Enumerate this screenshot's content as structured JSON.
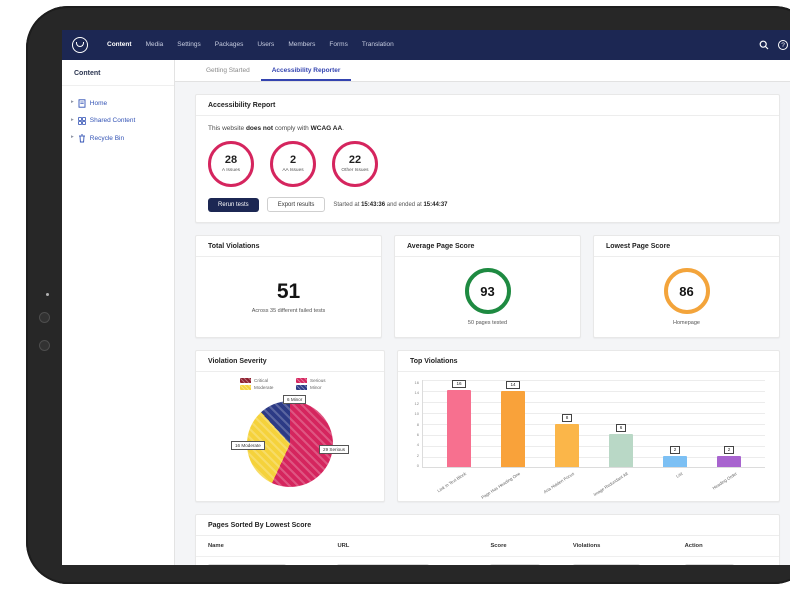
{
  "topnav": {
    "brand": "Umbraco",
    "items": [
      {
        "label": "Content",
        "active": true
      },
      {
        "label": "Media"
      },
      {
        "label": "Settings"
      },
      {
        "label": "Packages"
      },
      {
        "label": "Users"
      },
      {
        "label": "Members"
      },
      {
        "label": "Forms"
      },
      {
        "label": "Translation"
      }
    ],
    "help_glyph": "?"
  },
  "sidebar": {
    "title": "Content",
    "items": [
      {
        "label": "Home",
        "icon": "document-icon"
      },
      {
        "label": "Shared Content",
        "icon": "shared-grid-icon"
      },
      {
        "label": "Recycle Bin",
        "icon": "trash-icon"
      }
    ],
    "caret_glyph": "▸"
  },
  "tabs": {
    "getting_started": "Getting Started",
    "accessibility_reporter": "Accessibility Reporter"
  },
  "report": {
    "title": "Accessibility Report",
    "statement": {
      "prefix": "This website ",
      "bold1": "does not",
      "middle": " comply with ",
      "bold2": "WCAG AA",
      "suffix": "."
    },
    "issues": [
      {
        "count": "28",
        "label": "A Issues"
      },
      {
        "count": "2",
        "label": "AA Issues"
      },
      {
        "count": "22",
        "label": "Other Issues"
      }
    ],
    "buttons": {
      "rerun": "Rerun tests",
      "export": "Export results"
    },
    "run_info": {
      "prefix": "Started at ",
      "start": "15:43:36",
      "middle": " and ended at ",
      "end": "15:44:37"
    }
  },
  "stats": [
    {
      "title": "Total Violations",
      "value": "51",
      "subtitle": "Across 35 different failed tests"
    },
    {
      "title": "Average Page Score",
      "value": "93",
      "subtitle": "50 pages tested",
      "ring_color": "#1e8a41"
    },
    {
      "title": "Lowest Page Score",
      "value": "86",
      "subtitle": "Homepage",
      "ring_color": "#f3a43b"
    }
  ],
  "severity": {
    "title": "Violation Severity",
    "legend": [
      {
        "label": "Critical",
        "color": "#8e1f2f"
      },
      {
        "label": "Serious",
        "color": "#d5255e"
      },
      {
        "label": "Moderate",
        "color": "#f5d23b"
      },
      {
        "label": "Minor",
        "color": "#2c3a85"
      }
    ],
    "callouts": [
      {
        "text": "6 Minor"
      },
      {
        "text": "16 Moderate"
      },
      {
        "text": "29 Serious"
      }
    ]
  },
  "top_violations": {
    "title": "Top Violations"
  },
  "pages_table": {
    "title": "Pages Sorted By Lowest Score",
    "headers": [
      "Name",
      "URL",
      "Score",
      "Violations",
      "Action"
    ]
  },
  "colors": {
    "navbar_navy": "#1c2753",
    "active_tab_blue": "#3444b0",
    "issue_ring_pink": "#d5255e",
    "score_good_green": "#1e8a41",
    "score_warn_orange": "#f3a43b"
  },
  "chart_data": [
    {
      "type": "pie",
      "title": "Violation Severity",
      "labels": [
        "Serious",
        "Moderate",
        "Minor",
        "Critical"
      ],
      "values": [
        29,
        16,
        6,
        0
      ],
      "colors": [
        "#d5255e",
        "#f5d23b",
        "#2c3a85",
        "#8e1f2f"
      ],
      "legend_position": "top"
    },
    {
      "type": "bar",
      "title": "Top Violations",
      "categories": [
        "Link In Text Block",
        "Page Has Heading One",
        "Aria Hidden Focus",
        "Image Redundant Alt",
        "List",
        "Heading Order"
      ],
      "values": [
        16,
        14,
        8,
        6,
        2,
        2
      ],
      "colors": [
        "#f7708f",
        "#f9a23a",
        "#fbb649",
        "#b9d8c6",
        "#7cc0f4",
        "#a864cf"
      ],
      "ylim": [
        0,
        16
      ],
      "yticks": [
        16,
        14,
        12,
        10,
        8,
        6,
        4,
        2,
        0
      ],
      "grid": true
    }
  ]
}
